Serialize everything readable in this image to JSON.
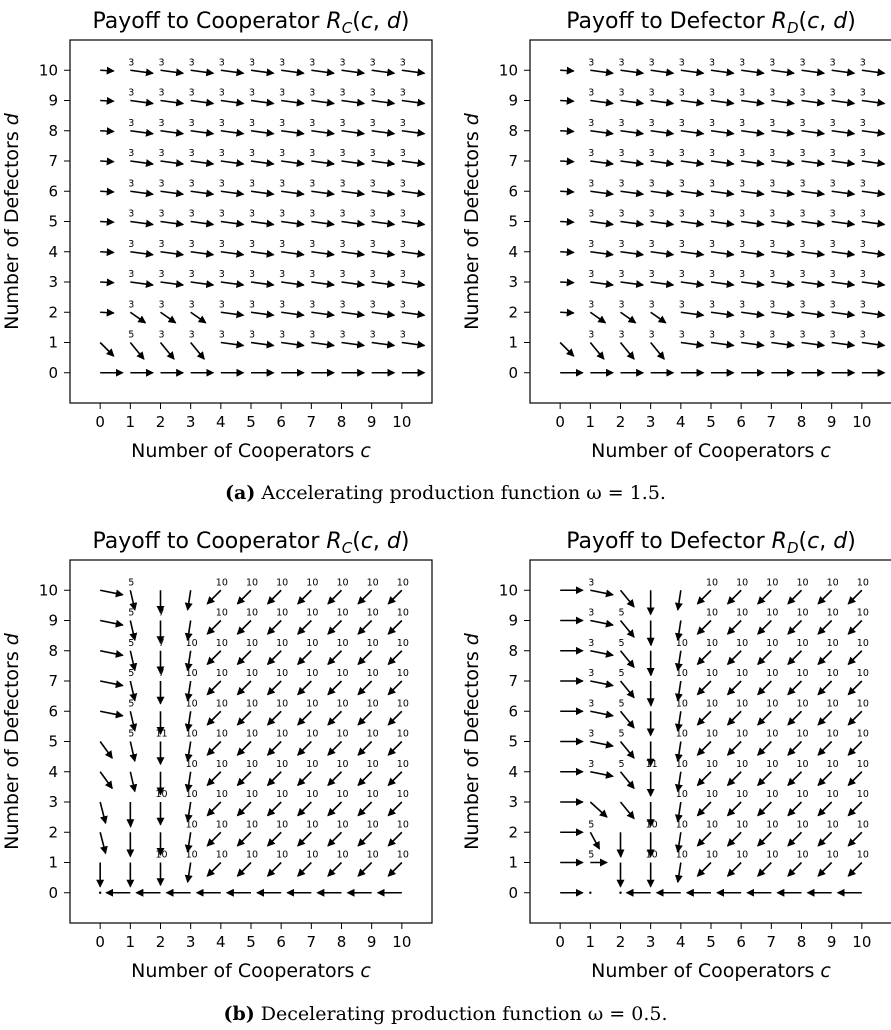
{
  "figure": {
    "caption_a_label": "(a)",
    "caption_a_text": "Accelerating production function ω = 1.5.",
    "caption_b_label": "(b)",
    "caption_b_text": "Decelerating production function ω = 0.5."
  },
  "chart_data": [
    {
      "type": "quiver",
      "panel": "a-left",
      "title": "Payoff to Cooperator R_C(c, d)",
      "xlabel": "Number of Cooperators c",
      "ylabel": "Number of Defectors d",
      "xticks": [
        0,
        1,
        2,
        3,
        4,
        5,
        6,
        7,
        8,
        9,
        10
      ],
      "yticks": [
        0,
        1,
        2,
        3,
        4,
        5,
        6,
        7,
        8,
        9,
        10
      ],
      "xlim": [
        -1,
        11
      ],
      "ylim": [
        -1,
        11
      ],
      "direction_rule": "accelerating",
      "labels": [
        {
          "row": 10,
          "text": "3"
        },
        {
          "row": 9,
          "text": "3"
        },
        {
          "row": 8,
          "text": "3"
        },
        {
          "row": 7,
          "text": "3"
        },
        {
          "row": 6,
          "text": "3"
        },
        {
          "row": 5,
          "text": "3"
        },
        {
          "row": 4,
          "text": "3"
        },
        {
          "row": 3,
          "text": "3"
        },
        {
          "row": 2,
          "text": "3"
        },
        {
          "row": 1,
          "text": "5",
          "first_only": true
        },
        {
          "row": 1,
          "text": "3"
        }
      ]
    },
    {
      "type": "quiver",
      "panel": "a-right",
      "title": "Payoff to Defector R_D(c, d)",
      "xlabel": "Number of Cooperators c",
      "ylabel": "Number of Defectors d",
      "xticks": [
        0,
        1,
        2,
        3,
        4,
        5,
        6,
        7,
        8,
        9,
        10
      ],
      "yticks": [
        0,
        1,
        2,
        3,
        4,
        5,
        6,
        7,
        8,
        9,
        10
      ],
      "xlim": [
        -1,
        11
      ],
      "ylim": [
        -1,
        11
      ],
      "direction_rule": "accelerating",
      "labels": [
        {
          "row": 10,
          "text": "3"
        },
        {
          "row": 9,
          "text": "3"
        },
        {
          "row": 8,
          "text": "3"
        },
        {
          "row": 7,
          "text": "3"
        },
        {
          "row": 6,
          "text": "3"
        },
        {
          "row": 5,
          "text": "3"
        },
        {
          "row": 4,
          "text": "3"
        },
        {
          "row": 3,
          "text": "3"
        },
        {
          "row": 2,
          "text": "3"
        },
        {
          "row": 1,
          "text": "3"
        }
      ]
    },
    {
      "type": "quiver",
      "panel": "b-left",
      "title": "Payoff to Cooperator R_C(c, d)",
      "xlabel": "Number of Cooperators c",
      "ylabel": "Number of Defectors d",
      "xticks": [
        0,
        1,
        2,
        3,
        4,
        5,
        6,
        7,
        8,
        9,
        10
      ],
      "yticks": [
        0,
        1,
        2,
        3,
        4,
        5,
        6,
        7,
        8,
        9,
        10
      ],
      "xlim": [
        -1,
        11
      ],
      "ylim": [
        -1,
        11
      ],
      "direction_rule": "decelerating-cooperator",
      "labels_by_column": {
        "1": {
          "10": "5",
          "9": "5",
          "8": "5",
          "7": "5",
          "6": "5",
          "5": "5",
          "2": "7"
        },
        "2": {
          "9": "7",
          "8": "7",
          "7": "7",
          "5": "11",
          "3": "10",
          "1": "10"
        },
        "other": "10"
      }
    },
    {
      "type": "quiver",
      "panel": "b-right",
      "title": "Payoff to Defector R_D(c, d)",
      "xlabel": "Number of Cooperators c",
      "ylabel": "Number of Defectors d",
      "xticks": [
        0,
        1,
        2,
        3,
        4,
        5,
        6,
        7,
        8,
        9,
        10
      ],
      "yticks": [
        0,
        1,
        2,
        3,
        4,
        5,
        6,
        7,
        8,
        9,
        10
      ],
      "xlim": [
        -1,
        11
      ],
      "ylim": [
        -1,
        11
      ],
      "direction_rule": "decelerating-defector",
      "labels_by_column": {
        "1": {
          "10": "3",
          "9": "3",
          "8": "3",
          "7": "3",
          "6": "3",
          "5": "3",
          "4": "3",
          "2": "5",
          "1": "5"
        },
        "2": {
          "9": "5",
          "8": "5",
          "7": "5",
          "6": "5",
          "5": "5",
          "4": "5",
          "1": "7"
        },
        "3": {
          "8": "7",
          "7": "7",
          "6": "7",
          "4": "11",
          "2": "10",
          "1": "10"
        },
        "other": "10"
      }
    }
  ]
}
